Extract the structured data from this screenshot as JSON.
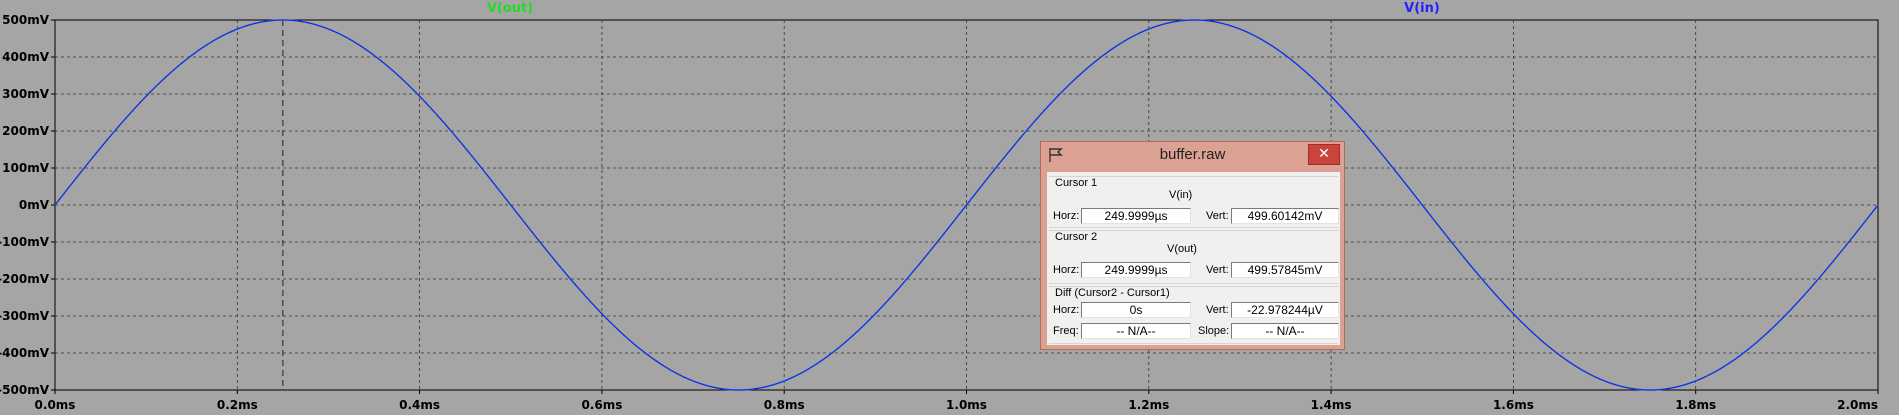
{
  "plot": {
    "y_ticks": [
      "500mV",
      "400mV",
      "300mV",
      "200mV",
      "100mV",
      "0mV",
      "-100mV",
      "-200mV",
      "-300mV",
      "-400mV",
      "-500mV"
    ],
    "x_ticks": [
      "0.0ms",
      "0.2ms",
      "0.4ms",
      "0.6ms",
      "0.8ms",
      "1.0ms",
      "1.2ms",
      "1.4ms",
      "1.6ms",
      "1.8ms",
      "2.0ms"
    ],
    "traces": [
      {
        "name": "V(out)",
        "color": "#22dd22"
      },
      {
        "name": "V(in)",
        "color": "#2222ff"
      }
    ],
    "background": "#a5a5a5",
    "cursor_time_ms": 0.25
  },
  "chart_data": {
    "type": "line",
    "x_range_ms": [
      0,
      2
    ],
    "y_range_mV": [
      -500,
      500
    ],
    "grid": true,
    "series": [
      {
        "name": "V(in)",
        "waveform": "sine",
        "amplitude_mV": 500,
        "frequency_kHz": 1,
        "color": "#2222ff"
      },
      {
        "name": "V(out)",
        "waveform": "sine",
        "amplitude_mV": 500,
        "frequency_kHz": 1,
        "color": "#22dd22"
      }
    ]
  },
  "dialog": {
    "title": "buffer.raw",
    "close_label": "✕",
    "cursor1": {
      "label": "Cursor 1",
      "trace": "V(in)",
      "horz_label": "Horz:",
      "horz": "249.9999µs",
      "vert_label": "Vert:",
      "vert": "499.60142mV"
    },
    "cursor2": {
      "label": "Cursor 2",
      "trace": "V(out)",
      "horz_label": "Horz:",
      "horz": "249.9999µs",
      "vert_label": "Vert:",
      "vert": "499.57845mV"
    },
    "diff": {
      "label": "Diff (Cursor2 - Cursor1)",
      "horz_label": "Horz:",
      "horz": "0s",
      "vert_label": "Vert:",
      "vert": "-22.978244µV",
      "freq_label": "Freq:",
      "freq": "-- N/A--",
      "slope_label": "Slope:",
      "slope": "-- N/A--"
    }
  }
}
